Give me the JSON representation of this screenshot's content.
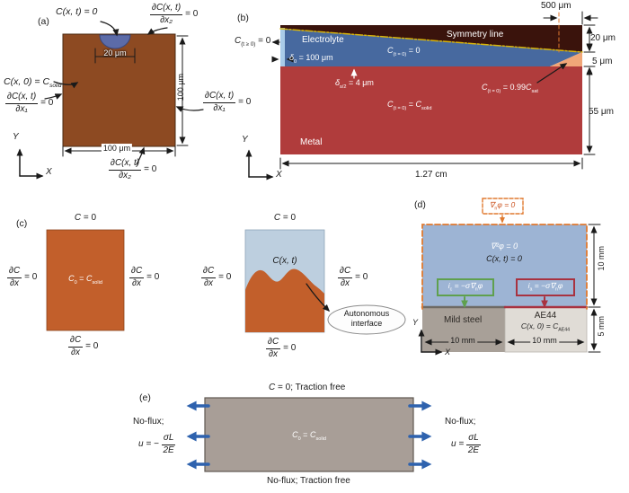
{
  "panels": {
    "a": {
      "tag": "(a)",
      "top_bc": "C(x, t) = 0",
      "notch_width": "20 μm",
      "initial": [
        {
          "t": "C(x, 0) = C"
        },
        {
          "t": "solid",
          "y": "sub"
        }
      ],
      "frac_num": "∂C(x, t)",
      "den_x1": "∂x₁",
      "den_x2": "∂x₂",
      "rhs": "= 0",
      "width_dim": "100 μm",
      "height_dim": "100 μm",
      "axis_x": "X",
      "axis_y": "Y"
    },
    "b": {
      "tag": "(b)",
      "left_bc": [
        {
          "t": "C",
          "y": "i"
        },
        {
          "t": "(t ≥ 0)",
          "y": "sub"
        },
        {
          "t": " = 0"
        }
      ],
      "electrolyte": "Electrolyte",
      "delta0": [
        {
          "t": "δ",
          "y": "i"
        },
        {
          "t": "0",
          "y": "sub"
        },
        {
          "t": " = 100 μm"
        }
      ],
      "c_electrolyte": [
        {
          "t": "C",
          "y": "i"
        },
        {
          "t": "(t = 0)",
          "y": "sub"
        },
        {
          "t": " = 0"
        }
      ],
      "delta_half": [
        {
          "t": "δ",
          "y": "i"
        },
        {
          "t": "s/2",
          "y": "sub"
        },
        {
          "t": " = 4 μm"
        }
      ],
      "symmetry": "Symmetry line",
      "c_pit": [
        {
          "t": "C",
          "y": "i"
        },
        {
          "t": "(t = 0)",
          "y": "sub"
        },
        {
          "t": " = 0.99"
        },
        {
          "t": "C",
          "y": "i"
        },
        {
          "t": "sat",
          "y": "sub"
        }
      ],
      "c_metal": [
        {
          "t": "C",
          "y": "i"
        },
        {
          "t": "(t = 0)",
          "y": "sub"
        },
        {
          "t": " = "
        },
        {
          "t": "C",
          "y": "i"
        },
        {
          "t": "solid",
          "y": "sub"
        }
      ],
      "metal": "Metal",
      "dim_500": "500 μm",
      "dim_20": "20 μm",
      "dim_5": "5 μm",
      "dim_55": "55 μm",
      "dim_width": "1.27 cm",
      "axis_x": "X",
      "axis_y": "Y"
    },
    "c": {
      "tag": "(c)",
      "top_bc": [
        {
          "t": "C",
          "y": "i"
        },
        {
          "t": " = 0"
        }
      ],
      "frac_num": "∂C",
      "frac_den": "∂x",
      "rhs": "= 0",
      "center_initial": [
        {
          "t": "C",
          "y": "i"
        },
        {
          "t": "0",
          "y": "sub"
        },
        {
          "t": " = "
        },
        {
          "t": "C",
          "y": "i"
        },
        {
          "t": "solid",
          "y": "sub"
        }
      ],
      "conc": "C(x, t)",
      "callout_line1": "Autonomous",
      "callout_line2": "interface"
    },
    "d": {
      "tag": "(d)",
      "flux_top": [
        {
          "t": "∇",
          "y": "i"
        },
        {
          "t": "n",
          "y": "sub"
        },
        {
          "t": "φ = 0",
          "y": "i"
        }
      ],
      "laplace": "∇²φ = 0",
      "conc": "C(x, t) = 0",
      "i_cathodic": [
        {
          "t": "i",
          "y": "i"
        },
        {
          "t": "c",
          "y": "sub"
        },
        {
          "t": " = −σ∇",
          "y": "i"
        },
        {
          "t": "n",
          "y": "sub"
        },
        {
          "t": "φ",
          "y": "i"
        }
      ],
      "i_anodic": [
        {
          "t": "i",
          "y": "i"
        },
        {
          "t": "a",
          "y": "sub"
        },
        {
          "t": " = −σ∇",
          "y": "i"
        },
        {
          "t": "n",
          "y": "sub"
        },
        {
          "t": "φ",
          "y": "i"
        }
      ],
      "steel": "Mild steel",
      "ae44": "AE44",
      "ae44_initial": [
        {
          "t": "C(x, 0) = C",
          "y": "i"
        },
        {
          "t": "AE44",
          "y": "sub"
        }
      ],
      "dim_height_top": "10 mm",
      "dim_height_bottom": "5 mm",
      "dim_width_left": "10 mm",
      "dim_width_right": "10 mm",
      "axis_x": "X",
      "axis_y": "Y"
    },
    "e": {
      "tag": "(e)",
      "top_bc": [
        {
          "t": "C",
          "y": "i"
        },
        {
          "t": " = 0; Traction free"
        }
      ],
      "center": [
        {
          "t": "C",
          "y": "i"
        },
        {
          "t": "0",
          "y": "sub"
        },
        {
          "t": " = "
        },
        {
          "t": "C",
          "y": "i"
        },
        {
          "t": "solid",
          "y": "sub"
        }
      ],
      "left_noflux": "No-flux;",
      "right_noflux": "No-flux;",
      "u_left_prefix": "u = −",
      "u_right_prefix": "u =",
      "u_num": "σL",
      "u_den": "2E",
      "bottom_bc": "No-flux; Traction free"
    }
  },
  "colors": {
    "panel_a_metal_brown": "#8D4A22",
    "pit_blue": "#5C6BA8",
    "electrolyte_blue": "#47699F",
    "symmetry_region_dark": "#3A130C",
    "metal_red": "#B03C3C",
    "interface_orange": "#F0A678",
    "symmetry_line_yellow": "#D9B50A",
    "panel_c_metal_orange": "#C25F2B",
    "panel_c_electrolyte_blue": "#BDCFDF",
    "panel_d_electrolyte_blue": "#9DB4D4",
    "dashed_boundary_orange": "#E07A30",
    "cathodic_green": "#5FA04E",
    "anodic_red": "#A83240",
    "mild_steel_gray": "#A8A098",
    "ae44_gray": "#E0DCD6",
    "panel_e_gray": "#A89E97",
    "displacement_arrow_blue": "#2E62AE"
  }
}
